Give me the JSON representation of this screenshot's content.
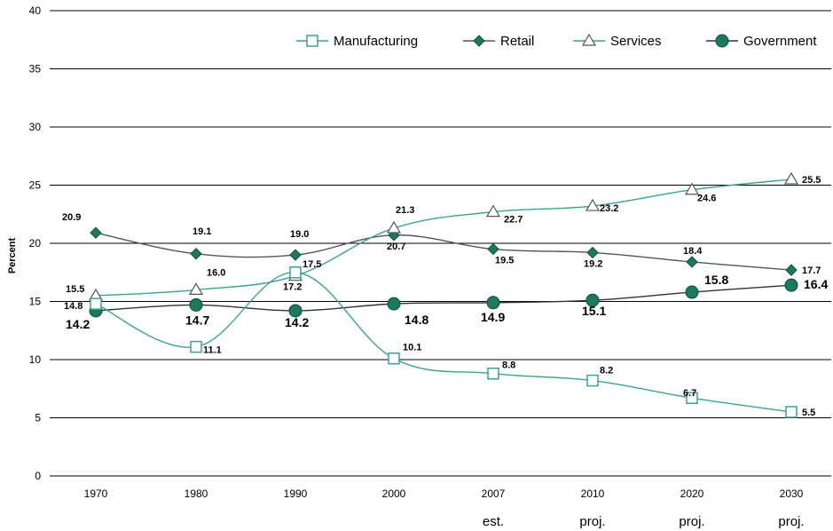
{
  "chart_data": {
    "type": "line",
    "title": "",
    "xlabel": "",
    "ylabel": "Percent",
    "ylim": [
      0,
      40
    ],
    "yticks": [
      "0",
      "5",
      "10",
      "15",
      "20",
      "25",
      "30",
      "35",
      "40"
    ],
    "categories": [
      "1970",
      "1980",
      "1990",
      "2000",
      "2007",
      "2010",
      "2020",
      "2030"
    ],
    "sublabels": [
      "",
      "",
      "",
      "",
      "est.",
      "proj.",
      "proj.",
      "proj."
    ],
    "grid": true,
    "legend_position": "top-right",
    "series": [
      {
        "name": "Manufacturing",
        "marker": "open-square",
        "color": "#3aa394",
        "values": [
          14.8,
          11.1,
          17.5,
          10.1,
          8.8,
          8.2,
          6.7,
          5.5
        ],
        "labels": [
          "14.8",
          "11.1",
          "17.5",
          "10.1",
          "8.8",
          "8.2",
          "6.7",
          "5.5"
        ]
      },
      {
        "name": "Retail",
        "marker": "filled-diamond",
        "color": "#555555",
        "marker_color": "#1a7a5e",
        "values": [
          20.9,
          19.1,
          19.0,
          20.7,
          19.5,
          19.2,
          18.4,
          17.7
        ],
        "labels": [
          "20.9",
          "19.1",
          "19.0",
          "20.7",
          "19.5",
          "19.2",
          "18.4",
          "17.7"
        ]
      },
      {
        "name": "Services",
        "marker": "open-triangle",
        "color": "#3aa394",
        "values": [
          15.5,
          16.0,
          17.2,
          21.3,
          22.7,
          23.2,
          24.6,
          25.5
        ],
        "labels": [
          "15.5",
          "16.0",
          "17.2",
          "21.3",
          "22.7",
          "23.2",
          "24.6",
          "25.5"
        ]
      },
      {
        "name": "Government",
        "marker": "filled-circle",
        "color": "#333333",
        "marker_color": "#1a7a5e",
        "values": [
          14.2,
          14.7,
          14.2,
          14.8,
          14.9,
          15.1,
          15.8,
          16.4
        ],
        "labels": [
          "14.2",
          "14.7",
          "14.2",
          "14.8",
          "14.9",
          "15.1",
          "15.8",
          "16.4"
        ]
      }
    ]
  }
}
